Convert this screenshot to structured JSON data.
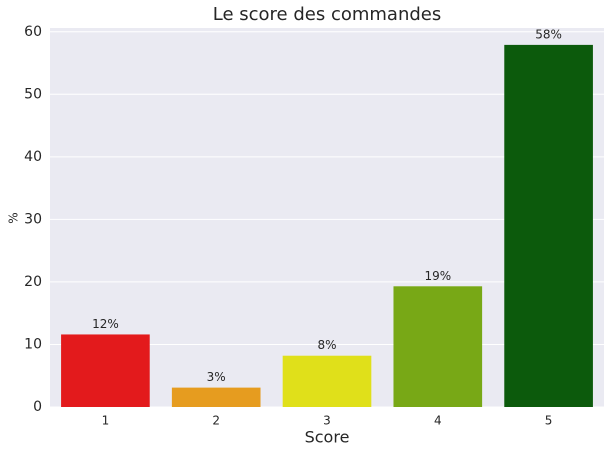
{
  "chart_data": {
    "type": "bar",
    "title": "Le score des commandes",
    "x_label": "Score",
    "y_label": "%",
    "categories": [
      "1",
      "2",
      "3",
      "4",
      "5"
    ],
    "values": [
      11.6,
      3.1,
      8.2,
      19.3,
      57.9
    ],
    "value_labels": [
      "12%",
      "3%",
      "8%",
      "19%",
      "58%"
    ],
    "colors": [
      "#e31a1c",
      "#e69c1f",
      "#e0e01a",
      "#78a816",
      "#0c5a0c"
    ],
    "ylim": [
      0,
      60.6
    ],
    "yticks": [
      0,
      10,
      20,
      30,
      40,
      50,
      60
    ],
    "grid": true
  }
}
